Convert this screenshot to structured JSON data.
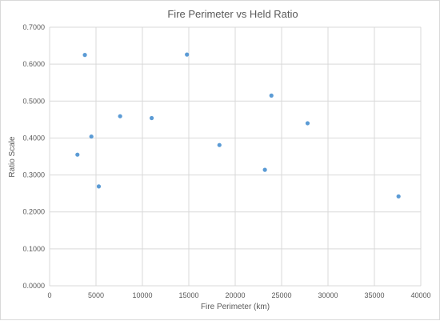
{
  "chart_data": {
    "type": "scatter",
    "title": "Fire Perimeter vs Held Ratio",
    "xlabel": "Fire Perimeter (km)",
    "ylabel": "Ratio Scale",
    "xlim": [
      0,
      40000
    ],
    "ylim": [
      0,
      0.7
    ],
    "grid": true,
    "legend": "none",
    "x_ticks": [
      "0",
      "5000",
      "10000",
      "15000",
      "20000",
      "25000",
      "30000",
      "35000",
      "40000"
    ],
    "y_ticks": [
      "0.0000",
      "0.1000",
      "0.2000",
      "0.3000",
      "0.4000",
      "0.5000",
      "0.6000",
      "0.7000"
    ],
    "marker_color": "#5b9bd5",
    "gridline_color": "#d9d9d9",
    "series": [
      {
        "points": [
          {
            "x": 3000,
            "y": 0.355
          },
          {
            "x": 3800,
            "y": 0.625
          },
          {
            "x": 4500,
            "y": 0.404
          },
          {
            "x": 5300,
            "y": 0.269
          },
          {
            "x": 7600,
            "y": 0.459
          },
          {
            "x": 11000,
            "y": 0.454
          },
          {
            "x": 14800,
            "y": 0.626
          },
          {
            "x": 18300,
            "y": 0.381
          },
          {
            "x": 23200,
            "y": 0.314
          },
          {
            "x": 23900,
            "y": 0.515
          },
          {
            "x": 27800,
            "y": 0.44
          },
          {
            "x": 37600,
            "y": 0.242
          }
        ]
      }
    ]
  }
}
